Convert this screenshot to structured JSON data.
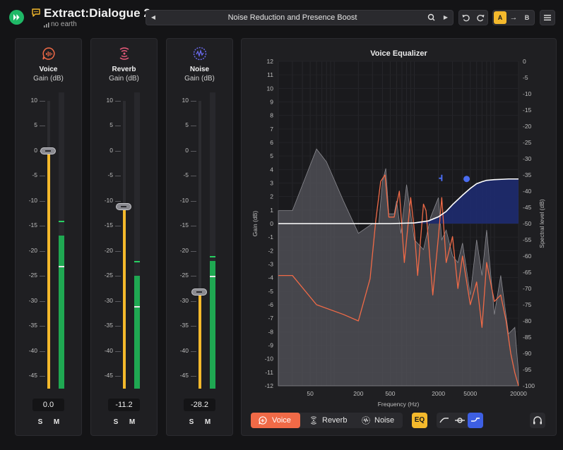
{
  "app": {
    "title": "Extract:Dialogue 2",
    "subtitle": "no earth",
    "logo_icon": "play-forward-icon",
    "brand_color": "#1fb866"
  },
  "preset": {
    "name": "Noise Reduction and Presence Boost",
    "prev_icon": "chevron-left-icon",
    "next_icon": "chevron-right-icon",
    "search_icon": "search-icon"
  },
  "history": {
    "undo_icon": "undo-icon",
    "redo_icon": "redo-icon"
  },
  "ab_compare": {
    "a_label": "A",
    "arrow": "→",
    "b_label": "B",
    "active": "A",
    "accent": "#f4b92c"
  },
  "menu_icon": "hamburger-menu-icon",
  "channels": [
    {
      "name": "Voice",
      "gain_label": "Gain (dB)",
      "icon": "voice-bubble-icon",
      "color": "#f06a47",
      "scale": [
        "10",
        "5",
        "0",
        "-5",
        "-10",
        "-15",
        "-20",
        "-25",
        "-30",
        "-35",
        "-40",
        "-45"
      ],
      "value": "0.0",
      "gain_db": 0.0,
      "meter_db": -17,
      "meter_peak_db": -14,
      "meter_hold_db": -23,
      "solo": "S",
      "mute": "M"
    },
    {
      "name": "Reverb",
      "gain_label": "Gain (dB)",
      "icon": "reverb-waves-icon",
      "color": "#e85a7a",
      "scale": [
        "10",
        "5",
        "0",
        "-5",
        "-10",
        "-15",
        "-20",
        "-25",
        "-30",
        "-35",
        "-40",
        "-45"
      ],
      "value": "-11.2",
      "gain_db": -11.2,
      "meter_db": -25,
      "meter_peak_db": -22,
      "meter_hold_db": -31,
      "solo": "S",
      "mute": "M"
    },
    {
      "name": "Noise",
      "gain_label": "Gain (dB)",
      "icon": "noise-waveform-icon",
      "color": "#6b6bf0",
      "scale": [
        "10",
        "5",
        "0",
        "-5",
        "-10",
        "-15",
        "-20",
        "-25",
        "-30",
        "-35",
        "-40",
        "-45"
      ],
      "value": "-28.2",
      "gain_db": -28.2,
      "meter_db": -22,
      "meter_peak_db": -21,
      "meter_hold_db": -25,
      "solo": "S",
      "mute": "M"
    }
  ],
  "eq": {
    "title": "Voice Equalizer",
    "xlabel": "Frequency (Hz)",
    "ylabel_left": "Gain (dB)",
    "ylabel_right": "Spectral level (dB)",
    "x_ticks": [
      "50",
      "200",
      "500",
      "2000",
      "5000",
      "20000"
    ],
    "y_left_ticks": [
      "12",
      "11",
      "10",
      "9",
      "8",
      "7",
      "6",
      "5",
      "4",
      "3",
      "2",
      "1",
      "0",
      "-1",
      "-2",
      "-3",
      "-4",
      "-5",
      "-6",
      "-7",
      "-8",
      "-9",
      "-10",
      "-11",
      "-12"
    ],
    "y_right_ticks": [
      "0",
      "-5",
      "-10",
      "-15",
      "-20",
      "-25",
      "-30",
      "-35",
      "-40",
      "-45",
      "-50",
      "-55",
      "-60",
      "-65",
      "-70",
      "-75",
      "-80",
      "-85",
      "-90",
      "-95",
      "-100"
    ],
    "chart_data": {
      "type": "area",
      "x_scale": "log",
      "xlim": [
        20,
        20000
      ],
      "ylim_left": [
        -12,
        12
      ],
      "ylim_right": [
        -100,
        0
      ],
      "grid": true,
      "series": [
        {
          "name": "",
          "axis": "right",
          "color": "#8a8a90",
          "x": [
            20,
            30,
            60,
            80,
            130,
            200,
            300,
            360,
            400,
            440,
            480,
            560,
            600,
            680,
            800,
            1000,
            1300,
            1600,
            2000,
            2200,
            2500,
            3000,
            3500,
            4000,
            5000,
            6000,
            7000,
            8000,
            10000,
            12000,
            15000,
            18000,
            20000
          ],
          "y": [
            -46,
            -46,
            -27,
            -31,
            -43,
            -53,
            -50,
            -50,
            -37,
            -33,
            -47,
            -47,
            -43,
            -53,
            -38,
            -55,
            -58,
            -48,
            -42,
            -55,
            -52,
            -60,
            -62,
            -56,
            -72,
            -55,
            -66,
            -52,
            -78,
            -66,
            -84,
            -82,
            -96
          ]
        },
        {
          "name": "",
          "axis": "right",
          "color": "#f06a47",
          "x": [
            20,
            30,
            60,
            130,
            200,
            280,
            330,
            380,
            430,
            480,
            560,
            650,
            750,
            900,
            1000,
            1100,
            1300,
            1400,
            1700,
            2000,
            2200,
            2500,
            3000,
            3500,
            4000,
            5000,
            6000,
            7000,
            8000,
            10000,
            12000,
            14000,
            16000,
            18000,
            20000
          ],
          "y": [
            -66,
            -66,
            -75,
            -78,
            -80,
            -67,
            -49,
            -37,
            -35,
            -48,
            -48,
            -40,
            -62,
            -42,
            -52,
            -66,
            -44,
            -46,
            -72,
            -54,
            -42,
            -62,
            -54,
            -70,
            -60,
            -75,
            -68,
            -82,
            -62,
            -74,
            -72,
            -80,
            -90,
            -96,
            -100
          ]
        },
        {
          "name": "",
          "axis": "left",
          "color": "#ffffff",
          "fill": "#1e2a6b",
          "x": [
            20,
            500,
            1000,
            1500,
            2000,
            2500,
            3000,
            4000,
            5000,
            6000,
            7000,
            8000,
            10000,
            13000,
            15000,
            20000
          ],
          "y": [
            0,
            0,
            0.05,
            0.2,
            0.5,
            0.9,
            1.4,
            2.1,
            2.6,
            2.95,
            3.1,
            3.2,
            3.25,
            3.28,
            3.3,
            3.3
          ]
        }
      ],
      "handles": [
        {
          "x": 2200,
          "y": 3.3,
          "shape": "cursor"
        },
        {
          "x": 4500,
          "y": 3.3,
          "shape": "dot"
        }
      ]
    }
  },
  "tabs": [
    {
      "label": "Voice",
      "icon": "voice-bubble-icon",
      "active": true
    },
    {
      "label": "Reverb",
      "icon": "reverb-waves-icon",
      "active": false
    },
    {
      "label": "Noise",
      "icon": "noise-waveform-icon",
      "active": false
    }
  ],
  "eq_toggle": "EQ",
  "filters": [
    {
      "icon": "low-cut-icon",
      "active": false
    },
    {
      "icon": "bell-icon",
      "active": false
    },
    {
      "icon": "high-shelf-icon",
      "active": true
    }
  ],
  "headphones_icon": "headphones-icon"
}
